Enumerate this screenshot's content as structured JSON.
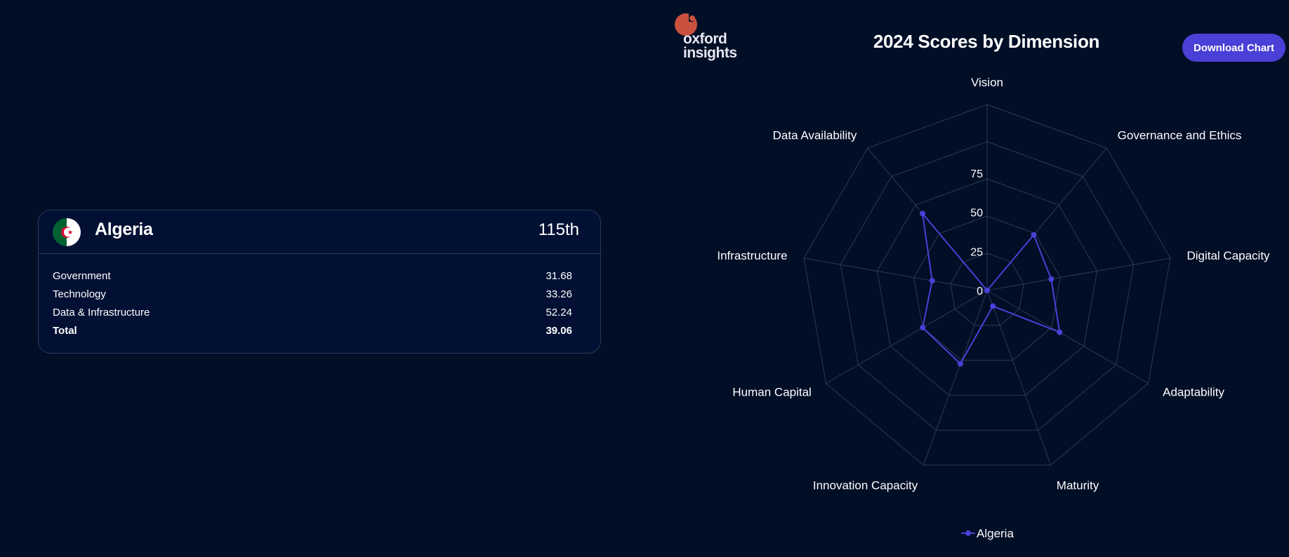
{
  "card": {
    "country": "Algeria",
    "rank": "115th",
    "rows": [
      {
        "label": "Government",
        "value": "31.68"
      },
      {
        "label": "Technology",
        "value": "33.26"
      },
      {
        "label": "Data & Infrastructure",
        "value": "52.24"
      },
      {
        "label": "Total",
        "value": "39.06"
      }
    ]
  },
  "logo": {
    "line1": "oxford",
    "line2": "insights"
  },
  "download_label": "Download Chart",
  "colors": {
    "background": "#000e26",
    "series": "#4a3fd6",
    "logo_red": "#c9503f",
    "grid": "#2b3a55"
  },
  "chart_data": {
    "type": "radar",
    "title": "2024 Scores by Dimension",
    "axes": [
      "Vision",
      "Governance and Ethics",
      "Digital Capacity",
      "Adaptability",
      "Maturity",
      "Innovation Capacity",
      "Human Capital",
      "Infrastructure",
      "Data Availability"
    ],
    "ticks": [
      "0",
      "25",
      "50",
      "75"
    ],
    "range": [
      0,
      100
    ],
    "series": [
      {
        "name": "Algeria",
        "values": [
          0,
          39,
          35,
          45,
          9,
          42,
          40,
          30,
          54
        ]
      }
    ],
    "legend_position": "bottom"
  }
}
